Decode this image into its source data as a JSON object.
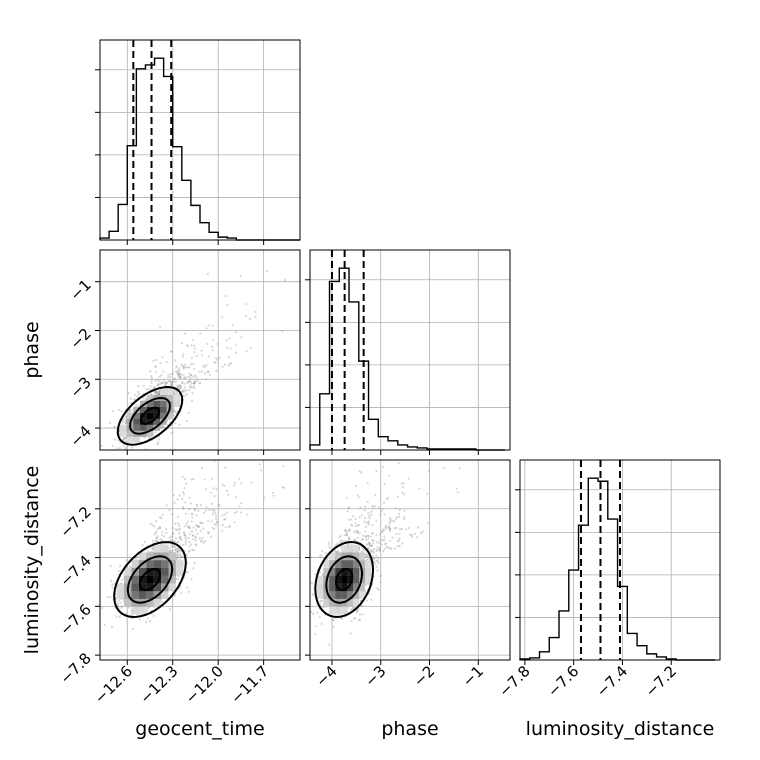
{
  "chart_data": {
    "type": "corner",
    "parameters": [
      {
        "name": "geocent_time",
        "range": [
          -12.78,
          -11.46
        ],
        "ticks": [
          -12.6,
          -12.3,
          -12.0,
          -11.7
        ],
        "tick_labels": [
          "−12.6",
          "−12.3",
          "−12.0",
          "−11.7"
        ],
        "quantiles": [
          -12.56,
          -12.44,
          -12.31
        ],
        "hist_bins": [
          -12.78,
          -12.72,
          -12.66,
          -12.6,
          -12.54,
          -12.48,
          -12.42,
          -12.36,
          -12.3,
          -12.24,
          -12.18,
          -12.12,
          -12.06,
          -12.0,
          -11.94,
          -11.88,
          -11.82,
          -11.76,
          -11.7,
          -11.64,
          -11.58,
          -11.52,
          -11.46
        ],
        "hist_counts": [
          2,
          9,
          37,
          98,
          178,
          182,
          189,
          170,
          97,
          62,
          36,
          18,
          8,
          3,
          2,
          0,
          0,
          0,
          0,
          0,
          0,
          0
        ]
      },
      {
        "name": "phase",
        "range": [
          -4.45,
          -0.35
        ],
        "ticks": [
          -4,
          -3,
          -2,
          -1
        ],
        "tick_labels": [
          "−4",
          "−3",
          "−2",
          "−1"
        ],
        "quantiles": [
          -4.0,
          -3.74,
          -3.35
        ],
        "hist_bins": [
          -4.45,
          -4.25,
          -4.05,
          -3.85,
          -3.65,
          -3.45,
          -3.25,
          -3.05,
          -2.85,
          -2.65,
          -2.45,
          -2.25,
          -2.05,
          -1.85,
          -1.65,
          -1.45,
          -1.25,
          -1.05,
          -0.85,
          -0.65,
          -0.45
        ],
        "hist_counts": [
          5,
          55,
          165,
          178,
          145,
          87,
          30,
          13,
          9,
          5,
          3,
          2,
          1,
          1,
          1,
          1,
          1,
          0,
          0,
          0
        ]
      },
      {
        "name": "luminosity_distance",
        "range": [
          -7.82,
          -7.0
        ],
        "ticks": [
          -7.8,
          -7.6,
          -7.4,
          -7.2
        ],
        "tick_labels": [
          "−7.8",
          "−7.6",
          "−7.4",
          "−7.2"
        ],
        "quantiles": [
          -7.57,
          -7.49,
          -7.41
        ],
        "hist_bins": [
          -7.82,
          -7.78,
          -7.74,
          -7.7,
          -7.66,
          -7.62,
          -7.58,
          -7.54,
          -7.5,
          -7.46,
          -7.42,
          -7.38,
          -7.34,
          -7.3,
          -7.26,
          -7.22,
          -7.18,
          -7.14,
          -7.1,
          -7.06,
          -7.02
        ],
        "hist_counts": [
          1,
          2,
          8,
          22,
          48,
          88,
          132,
          178,
          175,
          138,
          72,
          26,
          14,
          6,
          3,
          1,
          0,
          0,
          0,
          0
        ]
      }
    ],
    "pairs": [
      {
        "x_param": 0,
        "y_param": 1,
        "mean": [
          -12.45,
          -3.75
        ],
        "sd": [
          0.09,
          0.25
        ],
        "corr": 0.55,
        "contours": [
          0.39,
          0.86,
          1.39
        ]
      },
      {
        "x_param": 0,
        "y_param": 2,
        "mean": [
          -12.45,
          -7.49
        ],
        "sd": [
          0.1,
          0.065
        ],
        "corr": 0.45,
        "contours": [
          0.39,
          0.86,
          1.39
        ]
      },
      {
        "x_param": 1,
        "y_param": 2,
        "mean": [
          -3.75,
          -7.49
        ],
        "sd": [
          0.25,
          0.065
        ],
        "corr": 0.25,
        "contours": [
          0.39,
          0.86,
          1.39
        ]
      }
    ],
    "grid": true,
    "colors": {
      "line": "#000000",
      "grid": "#b0b0b0",
      "points": "#8c8c8c",
      "density": "#000000"
    }
  }
}
